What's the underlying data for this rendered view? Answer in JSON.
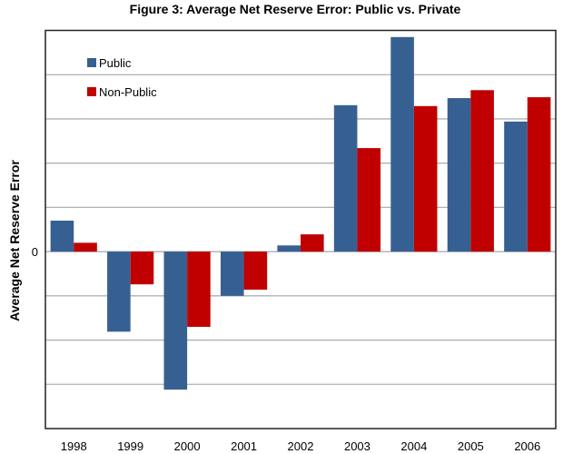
{
  "chart_data": {
    "type": "bar",
    "title": "Figure 3: Average Net Reserve Error: Public vs. Private",
    "xlabel": "",
    "ylabel": "Average Net Reserve Error",
    "categories": [
      "1998",
      "1999",
      "2000",
      "2001",
      "2002",
      "2003",
      "2004",
      "2005",
      "2006"
    ],
    "series": [
      {
        "name": "Public",
        "color": "#376092",
        "values": [
          0.7,
          -1.81,
          -3.12,
          -1.0,
          0.14,
          3.31,
          4.85,
          3.47,
          2.94
        ]
      },
      {
        "name": "Non-Public",
        "color": "#C00000",
        "values": [
          0.2,
          -0.74,
          -1.7,
          -0.86,
          0.39,
          2.34,
          3.29,
          3.65,
          3.49
        ]
      }
    ],
    "ylim": [
      -4,
      5
    ],
    "ytick_values": [
      -3,
      -2,
      -1,
      0,
      1,
      2,
      3,
      4
    ],
    "ytick_labels_shown": [
      {
        "value": 0,
        "label": "0"
      }
    ],
    "grid": true,
    "legend_position": "top-left"
  }
}
